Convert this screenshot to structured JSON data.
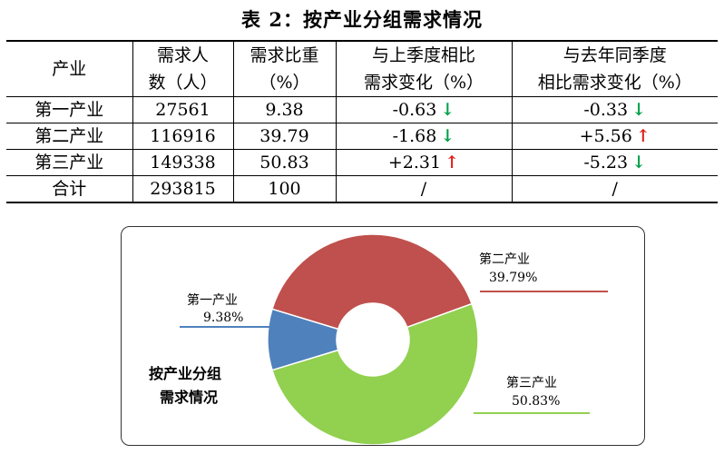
{
  "title": "表 2：按产业分组需求情况",
  "table": {
    "headers": {
      "industry": "产业",
      "demand_line1": "需求人",
      "demand_line2": "数（人）",
      "share_line1": "需求比重",
      "share_line2": "（%）",
      "qoq_line1": "与上季度相比",
      "qoq_line2": "需求变化（%）",
      "yoy_line1": "与去年同季度",
      "yoy_line2": "相比需求变化（%）"
    },
    "rows": [
      {
        "industry": "第一产业",
        "demand": "27561",
        "share": "9.38",
        "qoq": "-0.63",
        "qoq_dir": "down",
        "qoq_arrow": "↓",
        "yoy": "-0.33",
        "yoy_dir": "down",
        "yoy_arrow": "↓"
      },
      {
        "industry": "第二产业",
        "demand": "116916",
        "share": "39.79",
        "qoq": "-1.68",
        "qoq_dir": "down",
        "qoq_arrow": "↓",
        "yoy": "+5.56",
        "yoy_dir": "up",
        "yoy_arrow": "↑"
      },
      {
        "industry": "第三产业",
        "demand": "149338",
        "share": "50.83",
        "qoq": "+2.31",
        "qoq_dir": "up",
        "qoq_arrow": "↑",
        "yoy": "-5.23",
        "yoy_dir": "down",
        "yoy_arrow": "↓"
      },
      {
        "industry": "合计",
        "demand": "293815",
        "share": "100",
        "qoq": "/",
        "qoq_dir": "",
        "qoq_arrow": "",
        "yoy": "/",
        "yoy_dir": "",
        "yoy_arrow": ""
      }
    ]
  },
  "chart_data": {
    "type": "pie",
    "title_line1": "按产业分组",
    "title_line2": "需求情况",
    "slices": [
      {
        "label": "第一产业",
        "value": 9.38,
        "value_label": "9.38%",
        "color": "#4f81bd"
      },
      {
        "label": "第二产业",
        "value": 39.79,
        "value_label": "39.79%",
        "color": "#c0504d"
      },
      {
        "label": "第三产业",
        "value": 50.83,
        "value_label": "50.83%",
        "color": "#92d050"
      }
    ],
    "donut": true
  },
  "colors": {
    "down": "#00a04a",
    "up": "#e0201b"
  }
}
